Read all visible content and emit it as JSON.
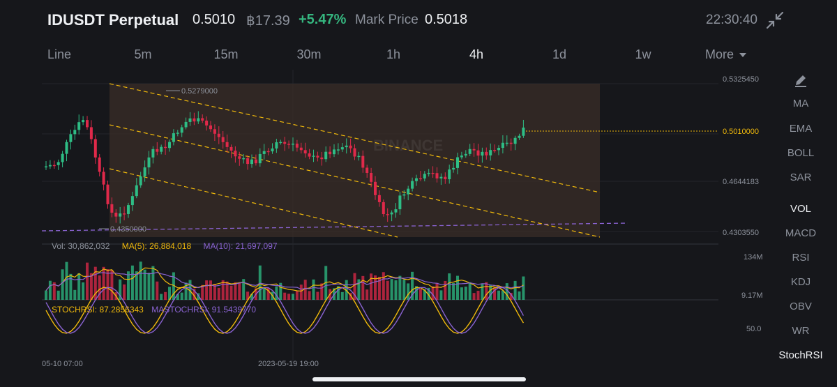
{
  "header": {
    "symbol": "IDUSDT Perpetual",
    "last_price": "0.5010",
    "btc_price": "฿17.39",
    "change": "+5.47%",
    "mark_label": "Mark Price",
    "mark_value": "0.5018",
    "time": "22:30:40",
    "collapse_icon": "collapse-arrows-icon"
  },
  "intervals": [
    "Line",
    "5m",
    "15m",
    "30m",
    "1h",
    "4h",
    "1d",
    "1w"
  ],
  "active_interval": "4h",
  "more_label": "More",
  "side_panel": {
    "edit_icon": "pencil-icon",
    "items": [
      "MA",
      "EMA",
      "BOLL",
      "SAR",
      "VOL",
      "MACD",
      "RSI",
      "KDJ",
      "OBV",
      "WR",
      "StochRSI"
    ],
    "active": [
      "VOL",
      "StochRSI"
    ]
  },
  "price_axis": {
    "labels": [
      "0.5325450",
      "0.4644183",
      "0.4303550"
    ],
    "current_price": "0.5010000"
  },
  "annotations": {
    "high": "0.5279000",
    "low": "0.4350000",
    "watermark": "BINANCE"
  },
  "volume": {
    "vol": "Vol: 30,862,032",
    "ma5": "MA(5): 26,884,018",
    "ma10": "MA(10): 21,697,097",
    "axis_top": "134M",
    "axis_bottom": "9.17M"
  },
  "stoch": {
    "stochrsi": "STOCHRSI: 87.2856343",
    "mastochrsi": "MASTOCHRSI: 91.5439770",
    "axis_mid": "50.0"
  },
  "time_axis": [
    "05-10 07:00",
    "2023-05-19 19:00"
  ],
  "colors": {
    "up": "#2ebd85",
    "down": "#e0294a",
    "channel": "#f0b90b",
    "support": "#8a63d2",
    "ma5": "#f0b90b",
    "ma10": "#8a63d2"
  }
}
